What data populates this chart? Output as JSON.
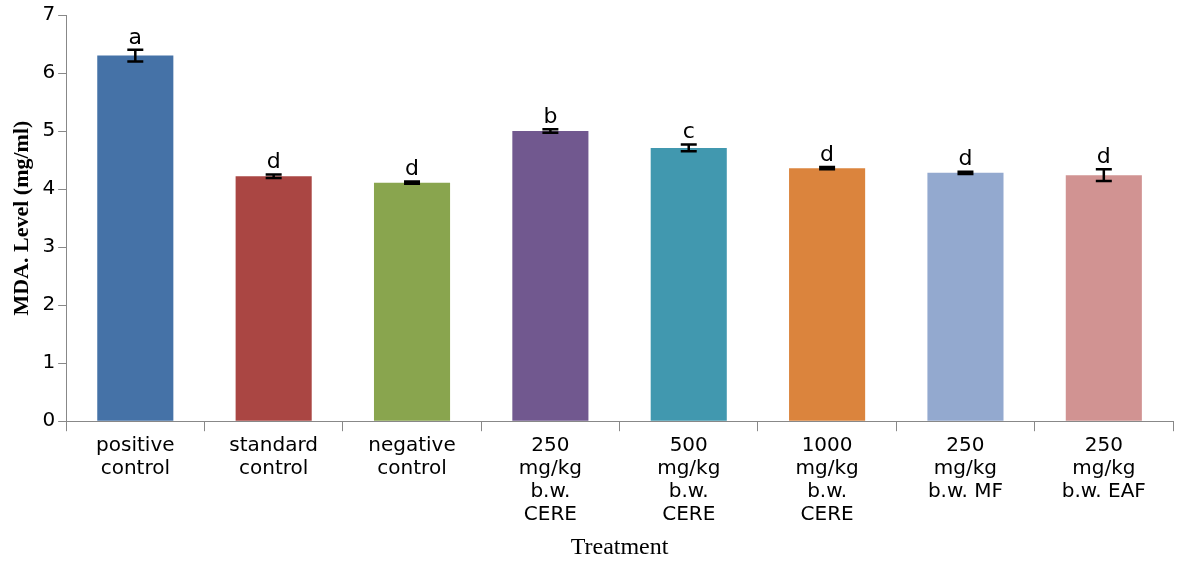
{
  "chart_data": {
    "type": "bar",
    "xlabel": "Treatment",
    "ylabel": "MDA. Level (mg/ml)",
    "categories": [
      "positive control",
      "standard control",
      "negative control",
      "250 mg/kg b.w. CERE",
      "500 mg/kg b.w. CERE",
      "1000 mg/kg b.w. CERE",
      "250 mg/kg b.w. MF",
      "250 mg/kg b.w. EAF"
    ],
    "values": [
      6.3,
      4.22,
      4.11,
      5.0,
      4.71,
      4.36,
      4.28,
      4.24
    ],
    "errors": [
      0.1,
      0.03,
      0.02,
      0.03,
      0.06,
      0.02,
      0.02,
      0.1
    ],
    "colors": [
      "#4572a7",
      "#aa4643",
      "#89a54e",
      "#71588f",
      "#4198af",
      "#db843d",
      "#93a9cf",
      "#d19392"
    ],
    "ylim": [
      0,
      7
    ],
    "yticks": [
      0,
      1,
      2,
      3,
      4,
      5,
      6,
      7
    ],
    "grid": false,
    "legend": false,
    "annotations": [
      {
        "text": "a",
        "x": "positive control",
        "y": 6.4
      },
      {
        "text": "d",
        "x": "standard control",
        "y": 4.25
      },
      {
        "text": "d",
        "x": "negative control",
        "y": 4.13
      },
      {
        "text": "b",
        "x": "250 mg/kg b.w. CERE",
        "y": 5.03
      },
      {
        "text": "c",
        "x": "500 mg/kg b.w. CERE",
        "y": 4.77
      },
      {
        "text": "d",
        "x": "1000 mg/kg b.w. CERE",
        "y": 4.38
      },
      {
        "text": "d",
        "x": "250 mg/kg b.w. MF",
        "y": 4.3
      },
      {
        "text": "d",
        "x": "250 mg/kg b.w. EAF",
        "y": 4.34
      }
    ]
  }
}
